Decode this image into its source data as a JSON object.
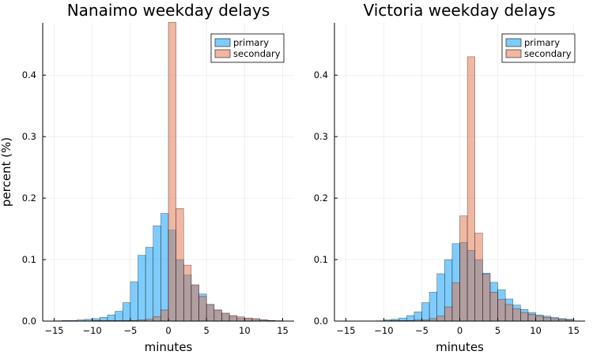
{
  "colors": {
    "primary": "#009af9",
    "secondary": "#e26f46"
  },
  "chart_data": [
    {
      "type": "bar",
      "title": "Nanaimo weekday delays",
      "xlabel": "minutes",
      "ylabel": "percent (%)",
      "xlim": [
        -16.5,
        16.5
      ],
      "ylim": [
        0,
        0.485
      ],
      "xticks": [
        -15,
        -10,
        -5,
        0,
        5,
        10,
        15
      ],
      "xtick_labels": [
        "−15",
        "−10",
        "−5",
        "0",
        "5",
        "10",
        "15"
      ],
      "yticks": [
        0.0,
        0.1,
        0.2,
        0.3,
        0.4
      ],
      "ytick_labels": [
        "0.0",
        "0.1",
        "0.2",
        "0.3",
        "0.4"
      ],
      "grid": true,
      "legend": "top-right",
      "bin_edges": [
        -15,
        -14,
        -13,
        -12,
        -11,
        -10,
        -9,
        -8,
        -7,
        -6,
        -5,
        -4,
        -3,
        -2,
        -1,
        0,
        1,
        2,
        3,
        4,
        5,
        6,
        7,
        8,
        9,
        10,
        11,
        12,
        13,
        14,
        15
      ],
      "series": [
        {
          "name": "primary",
          "values": [
            0.0005,
            0.001,
            0.001,
            0.002,
            0.003,
            0.004,
            0.006,
            0.01,
            0.016,
            0.03,
            0.064,
            0.107,
            0.12,
            0.155,
            0.175,
            0.148,
            0.1,
            0.075,
            0.058,
            0.044,
            0.027,
            0.018,
            0.012,
            0.008,
            0.005,
            0.004,
            0.003,
            0.002,
            0.001,
            0.0005
          ]
        },
        {
          "name": "secondary",
          "values": [
            0,
            0,
            0,
            0,
            0.0005,
            0.001,
            0.001,
            0.001,
            0.001,
            0.001,
            0.001,
            0.002,
            0.003,
            0.007,
            0.018,
            0.486,
            0.183,
            0.091,
            0.059,
            0.04,
            0.027,
            0.018,
            0.013,
            0.009,
            0.007,
            0.005,
            0.004,
            0.002,
            0.001,
            0.0005
          ]
        }
      ]
    },
    {
      "type": "bar",
      "title": "Victoria weekday delays",
      "xlabel": "minutes",
      "ylabel": "",
      "xlim": [
        -16.5,
        16.5
      ],
      "ylim": [
        0,
        0.485
      ],
      "xticks": [
        -15,
        -10,
        -5,
        0,
        5,
        10,
        15
      ],
      "xtick_labels": [
        "−15",
        "−10",
        "−5",
        "0",
        "5",
        "10",
        "15"
      ],
      "yticks": [
        0.0,
        0.1,
        0.2,
        0.3,
        0.4
      ],
      "ytick_labels": [
        "0.0",
        "0.1",
        "0.2",
        "0.3",
        "0.4"
      ],
      "grid": true,
      "legend": "top-right",
      "bin_edges": [
        -15,
        -14,
        -13,
        -12,
        -11,
        -10,
        -9,
        -8,
        -7,
        -6,
        -5,
        -4,
        -3,
        -2,
        -1,
        0,
        1,
        2,
        3,
        4,
        5,
        6,
        7,
        8,
        9,
        10,
        11,
        12,
        13,
        14,
        15
      ],
      "series": [
        {
          "name": "primary",
          "values": [
            0,
            0,
            0,
            0,
            0.0005,
            0.002,
            0.003,
            0.005,
            0.009,
            0.015,
            0.03,
            0.047,
            0.077,
            0.1,
            0.126,
            0.128,
            0.115,
            0.1,
            0.078,
            0.063,
            0.051,
            0.036,
            0.026,
            0.019,
            0.014,
            0.01,
            0.008,
            0.006,
            0.004,
            0.003
          ]
        },
        {
          "name": "secondary",
          "values": [
            0,
            0,
            0,
            0,
            0,
            0.0005,
            0.001,
            0.001,
            0.001,
            0.002,
            0.002,
            0.004,
            0.008,
            0.023,
            0.062,
            0.171,
            0.43,
            0.143,
            0.076,
            0.047,
            0.035,
            0.027,
            0.02,
            0.014,
            0.011,
            0.008,
            0.006,
            0.004,
            0.003,
            0.002
          ]
        }
      ]
    }
  ]
}
